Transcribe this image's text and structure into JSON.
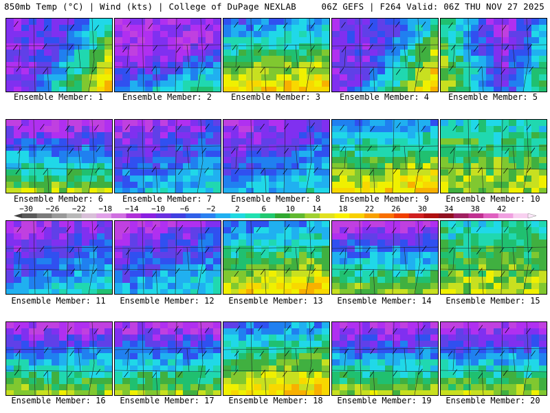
{
  "header": {
    "left_title": "850mb Temp (°C) | Wind (kts) | College of DuPage NEXLAB",
    "right_title": "06Z GEFS | F264 Valid: 06Z THU NOV 27 2025"
  },
  "panels": [
    {
      "label": "Ensemble Member: 1",
      "scheme": "cold_east_warm",
      "warm_level": 0.55
    },
    {
      "label": "Ensemble Member: 2",
      "scheme": "cold_nw",
      "warm_level": 0.35
    },
    {
      "label": "Ensemble Member: 3",
      "scheme": "mild_south_warm",
      "warm_level": 0.8
    },
    {
      "label": "Ensemble Member: 4",
      "scheme": "cold_east_warm",
      "warm_level": 0.5
    },
    {
      "label": "Ensemble Member: 5",
      "scheme": "cold_center",
      "warm_level": 0.3
    },
    {
      "label": "Ensemble Member: 6",
      "scheme": "cold_north",
      "warm_level": 0.35
    },
    {
      "label": "Ensemble Member: 7",
      "scheme": "very_cold",
      "warm_level": 0.2
    },
    {
      "label": "Ensemble Member: 8",
      "scheme": "very_cold",
      "warm_level": 0.25
    },
    {
      "label": "Ensemble Member: 9",
      "scheme": "mild_south_warm",
      "warm_level": 0.7
    },
    {
      "label": "Ensemble Member: 10",
      "scheme": "mild",
      "warm_level": 0.6
    },
    {
      "label": "Ensemble Member: 11",
      "scheme": "very_cold",
      "warm_level": 0.2
    },
    {
      "label": "Ensemble Member: 12",
      "scheme": "very_cold",
      "warm_level": 0.2
    },
    {
      "label": "Ensemble Member: 13",
      "scheme": "mild_south_warm",
      "warm_level": 0.65
    },
    {
      "label": "Ensemble Member: 14",
      "scheme": "cold_north",
      "warm_level": 0.45
    },
    {
      "label": "Ensemble Member: 15",
      "scheme": "mild",
      "warm_level": 0.75
    },
    {
      "label": "Ensemble Member: 16",
      "scheme": "cold_north",
      "warm_level": 0.5
    },
    {
      "label": "Ensemble Member: 17",
      "scheme": "cold_north",
      "warm_level": 0.45
    },
    {
      "label": "Ensemble Member: 18",
      "scheme": "mild_south_warm",
      "warm_level": 0.7
    },
    {
      "label": "Ensemble Member: 19",
      "scheme": "cold_north",
      "warm_level": 0.55
    },
    {
      "label": "Ensemble Member: 20",
      "scheme": "cold_north",
      "warm_level": 0.6
    }
  ],
  "colorbar": {
    "ticks": [
      "−30",
      "−26",
      "−22",
      "−18",
      "−14",
      "−10",
      "−6",
      "−2",
      "2",
      "6",
      "10",
      "14",
      "18",
      "22",
      "26",
      "30",
      "34",
      "38",
      "42"
    ],
    "colors": [
      "#5a5a5a",
      "#7a7a7a",
      "#999999",
      "#b8b8b8",
      "#d8bfd8",
      "#e0a0e8",
      "#d070e0",
      "#b030d8",
      "#8a20e0",
      "#6a30e0",
      "#4040e0",
      "#3060e8",
      "#2a80f0",
      "#20b0f0",
      "#20d8e0",
      "#20e0b0",
      "#20c870",
      "#30a830",
      "#60b830",
      "#a0d030",
      "#e0e020",
      "#f8f000",
      "#f8d000",
      "#f8a000",
      "#f87000",
      "#f04000",
      "#d02020",
      "#b01010",
      "#901020",
      "#a02060",
      "#c03090",
      "#e060c0",
      "#f0a0e0",
      "#f8d0f0"
    ]
  }
}
